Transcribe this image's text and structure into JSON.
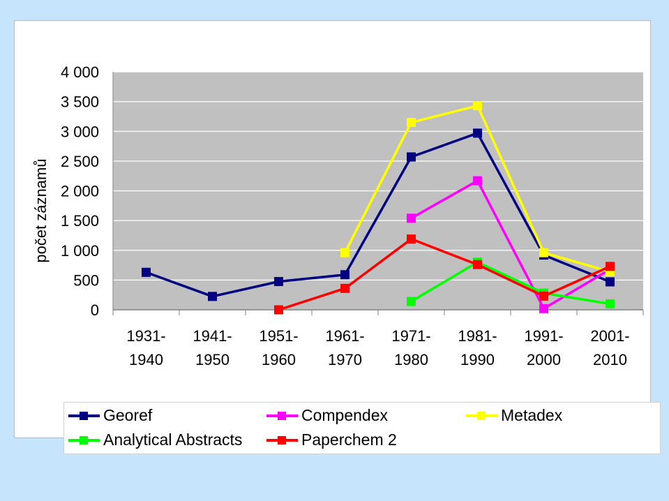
{
  "chart_data": {
    "type": "line",
    "ylabel": "počet záznamů",
    "ylim": [
      0,
      4000
    ],
    "yticks": [
      "0",
      "500",
      "1 000",
      "1 500",
      "2 000",
      "2 500",
      "3 000",
      "3 500",
      "4 000"
    ],
    "ytick_values": [
      0,
      500,
      1000,
      1500,
      2000,
      2500,
      3000,
      3500,
      4000
    ],
    "categories": [
      [
        "1931-",
        "1940"
      ],
      [
        "1941-",
        "1950"
      ],
      [
        "1951-",
        "1960"
      ],
      [
        "1961-",
        "1970"
      ],
      [
        "1971-",
        "1980"
      ],
      [
        "1981-",
        "1990"
      ],
      [
        "1991-",
        "2000"
      ],
      [
        "2001-",
        "2010"
      ]
    ],
    "grid": true,
    "plot_background": "#c0c0c0",
    "legend_position": "bottom",
    "series": [
      {
        "name": "Georef",
        "color": "#000080",
        "values": [
          630,
          225,
          475,
          590,
          2570,
          2970,
          920,
          470
        ]
      },
      {
        "name": "Compendex",
        "color": "#ff00ff",
        "values": [
          null,
          null,
          null,
          null,
          1540,
          2170,
          20,
          680
        ]
      },
      {
        "name": "Metadex",
        "color": "#ffff00",
        "values": [
          null,
          null,
          null,
          960,
          3150,
          3430,
          960,
          640
        ]
      },
      {
        "name": "Analytical Abstracts",
        "color": "#00ff00",
        "values": [
          null,
          null,
          null,
          null,
          140,
          800,
          280,
          100
        ]
      },
      {
        "name": "Paperchem 2",
        "color": "#ff0000",
        "values": [
          null,
          null,
          0,
          360,
          1190,
          760,
          230,
          730
        ]
      }
    ]
  }
}
